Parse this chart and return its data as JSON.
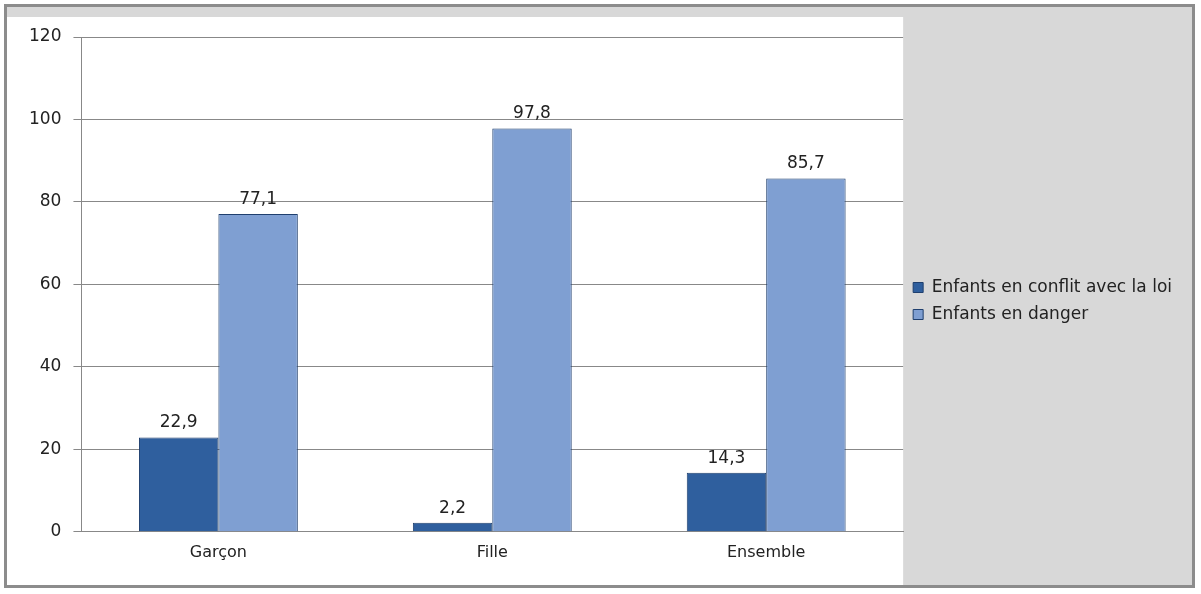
{
  "chart_data": {
    "type": "bar",
    "categories": [
      "Garçon",
      "Fille",
      "Ensemble"
    ],
    "series": [
      {
        "name": "Enfants en conflit avec la loi",
        "color": "#2f5f9e",
        "values": [
          22.9,
          2.2,
          14.3
        ],
        "value_labels": [
          "22,9",
          "2,2",
          "14,3"
        ]
      },
      {
        "name": "Enfants en danger",
        "color": "#7f9fd2",
        "values": [
          77.1,
          97.8,
          85.7
        ],
        "value_labels": [
          "77,1",
          "97,8",
          "85,7"
        ]
      }
    ],
    "ylim": [
      0,
      120
    ],
    "yticks": [
      0,
      20,
      40,
      60,
      80,
      100,
      120
    ],
    "grid": "y",
    "legend": "right"
  }
}
